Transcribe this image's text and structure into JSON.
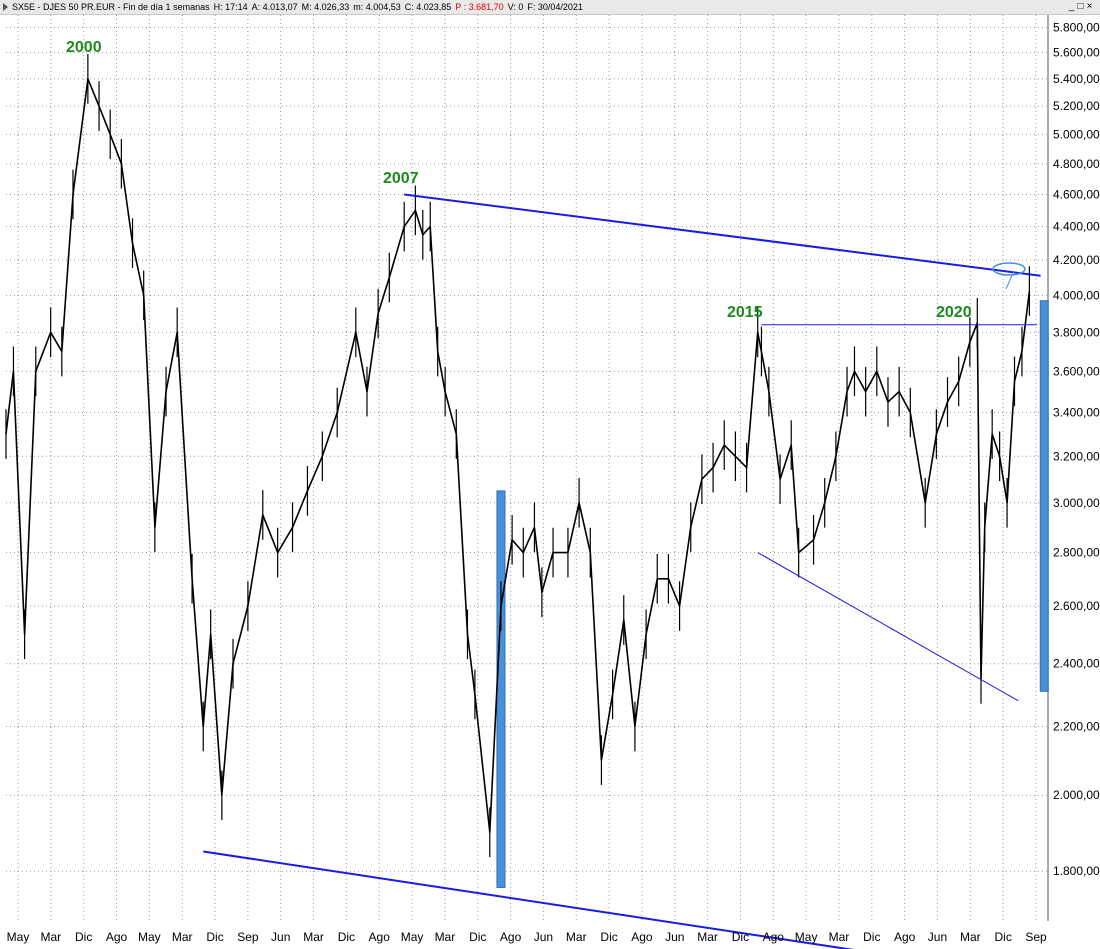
{
  "window": {
    "title_parts": [
      "SX5E - DJES 50 PR.EUR - Fin de día 1 semanas",
      "H: 17:14",
      "A: 4.013,07",
      "M: 4.026,33",
      "m: 4.004,53",
      "C: 4.023,85"
    ],
    "title_red": "P : 3.681,70",
    "title_tail": [
      "V: 0",
      "F: 30/04/2021"
    ],
    "controls": [
      "_",
      "□",
      "×"
    ]
  },
  "colors": {
    "price": "#000000",
    "trendline": "#1a1ae6",
    "annotation": "#1e8a1e",
    "bar": "#4a90d9",
    "grid": "#9a9a9a"
  },
  "chart_data": {
    "type": "line",
    "y_scale": "log",
    "ylim": [
      1680,
      5900
    ],
    "y_ticks": [
      "1.800,00",
      "2.000,00",
      "2.200,00",
      "2.400,00",
      "2.600,00",
      "2.800,00",
      "3.000,00",
      "3.200,00",
      "3.400,00",
      "3.600,00",
      "3.800,00",
      "4.000,00",
      "4.200,00",
      "4.400,00",
      "4.600,00",
      "4.800,00",
      "5.000,00",
      "5.200,00",
      "5.400,00",
      "5.600,00",
      "5.800,00"
    ],
    "x_ticks": [
      "May",
      "Mar",
      "Dic",
      "Ago",
      "May",
      "Mar",
      "Dic",
      "Sep",
      "Jun",
      "Mar",
      "Dic",
      "Ago",
      "May",
      "Mar",
      "Dic",
      "Ago",
      "Jun",
      "Mar",
      "Dic",
      "Ago",
      "Jun",
      "Mar",
      "Dic",
      "Ago",
      "May",
      "Mar",
      "Dic",
      "Ago",
      "Jun",
      "Mar",
      "Dic",
      "Sep"
    ],
    "x_range": [
      "1998-05",
      "2021-09"
    ],
    "series": [
      {
        "style": "weekly price line",
        "x": [
          "1998-05",
          "1998-07",
          "1998-10",
          "1999-01",
          "1999-05",
          "1999-08",
          "1999-11",
          "2000-03",
          "2000-06",
          "2000-09",
          "2000-12",
          "2001-03",
          "2001-06",
          "2001-09",
          "2001-12",
          "2002-03",
          "2002-07",
          "2002-10",
          "2002-12",
          "2003-03",
          "2003-06",
          "2003-10",
          "2004-02",
          "2004-06",
          "2004-10",
          "2005-02",
          "2005-06",
          "2005-10",
          "2006-03",
          "2006-06",
          "2006-09",
          "2006-12",
          "2007-04",
          "2007-07",
          "2007-09",
          "2007-11",
          "2008-01",
          "2008-03",
          "2008-06",
          "2008-09",
          "2008-11",
          "2009-03",
          "2009-06",
          "2009-09",
          "2009-12",
          "2010-03",
          "2010-05",
          "2010-08",
          "2010-12",
          "2011-03",
          "2011-06",
          "2011-09",
          "2011-12",
          "2012-03",
          "2012-06",
          "2012-09",
          "2012-12",
          "2013-03",
          "2013-06",
          "2013-09",
          "2013-12",
          "2014-03",
          "2014-06",
          "2014-09",
          "2014-12",
          "2015-03",
          "2015-04",
          "2015-06",
          "2015-09",
          "2015-12",
          "2016-02",
          "2016-06",
          "2016-09",
          "2016-12",
          "2017-03",
          "2017-05",
          "2017-08",
          "2017-11",
          "2018-02",
          "2018-05",
          "2018-08",
          "2018-12",
          "2019-03",
          "2019-06",
          "2019-09",
          "2019-12",
          "2020-02",
          "2020-03",
          "2020-04",
          "2020-06",
          "2020-08",
          "2020-10",
          "2020-12",
          "2021-02",
          "2021-04"
        ],
        "y": [
          3300,
          3600,
          2500,
          3600,
          3800,
          3700,
          4600,
          5400,
          5200,
          5000,
          4800,
          4300,
          4000,
          2900,
          3500,
          3800,
          2700,
          2200,
          2500,
          2000,
          2400,
          2600,
          2950,
          2800,
          2900,
          3050,
          3200,
          3400,
          3800,
          3500,
          3900,
          4100,
          4400,
          4500,
          4350,
          4400,
          3700,
          3500,
          3300,
          2500,
          2300,
          1900,
          2600,
          2850,
          2800,
          2900,
          2650,
          2800,
          2800,
          3000,
          2800,
          2100,
          2300,
          2550,
          2200,
          2500,
          2700,
          2700,
          2600,
          2900,
          3100,
          3150,
          3250,
          3200,
          3150,
          3800,
          3700,
          3500,
          3100,
          3250,
          2800,
          2850,
          3000,
          3200,
          3500,
          3600,
          3500,
          3600,
          3450,
          3500,
          3400,
          3000,
          3300,
          3450,
          3550,
          3750,
          3850,
          2350,
          2900,
          3300,
          3200,
          3000,
          3550,
          3700,
          4024
        ]
      }
    ],
    "annotations": [
      "2000",
      "2007",
      "2015",
      "2020"
    ],
    "lines": [
      {
        "kind": "resistance",
        "from": [
          "2007-04",
          4600
        ],
        "to": [
          "2021-07",
          4110
        ]
      },
      {
        "kind": "horizontal",
        "from": [
          "2015-04",
          3840
        ],
        "to": [
          "2021-06",
          3840
        ]
      },
      {
        "kind": "support",
        "from": [
          "2002-10",
          1850
        ],
        "to": [
          "2019-08",
          1580
        ]
      },
      {
        "kind": "support",
        "from": [
          "2015-03",
          2800
        ],
        "to": [
          "2021-01",
          2280
        ]
      }
    ],
    "bars": [
      {
        "x": "2009-06",
        "from": 1760,
        "to": 3050
      },
      {
        "x": "2021-08",
        "from": 2310,
        "to": 3970
      }
    ],
    "grid": true
  }
}
